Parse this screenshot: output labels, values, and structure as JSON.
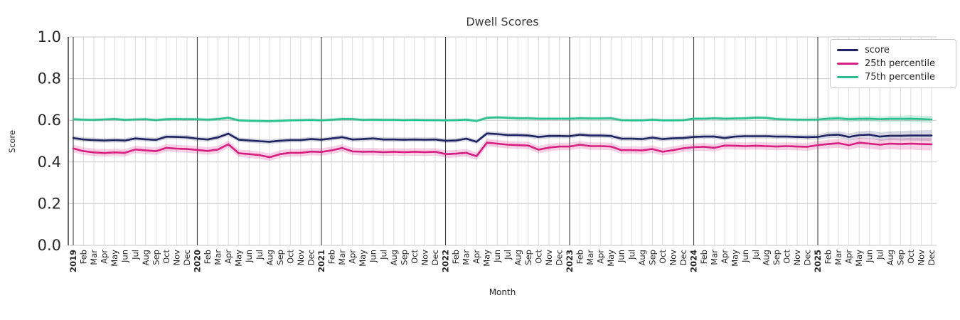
{
  "chart_data": {
    "type": "line",
    "title": "Dwell Scores",
    "xlabel": "Month",
    "ylabel": "Score",
    "ylim": [
      0.0,
      1.0
    ],
    "ytick_values": [
      0.0,
      0.2,
      0.4,
      0.6,
      0.8,
      1.0
    ],
    "ytick_labels": [
      "0.0",
      "0.2",
      "0.4",
      "0.6",
      "0.8",
      "1.0"
    ],
    "grid": true,
    "legend_position": "upper right",
    "x_tick_labels": [
      "2019",
      "Feb",
      "Mar",
      "Apr",
      "May",
      "Jun",
      "Jul",
      "Aug",
      "Sep",
      "Oct",
      "Nov",
      "Dec",
      "2020",
      "Feb",
      "Mar",
      "Apr",
      "May",
      "Jun",
      "Jul",
      "Aug",
      "Sep",
      "Oct",
      "Nov",
      "Dec",
      "2021",
      "Feb",
      "Mar",
      "Apr",
      "May",
      "Jun",
      "Jul",
      "Aug",
      "Sep",
      "Oct",
      "Nov",
      "Dec",
      "2022",
      "Feb",
      "Mar",
      "Apr",
      "May",
      "Jun",
      "Jul",
      "Aug",
      "Sep",
      "Oct",
      "Nov",
      "Dec",
      "2023",
      "Feb",
      "Mar",
      "Apr",
      "May",
      "Jun",
      "Jul",
      "Aug",
      "Sep",
      "Oct",
      "Nov",
      "Dec",
      "2024",
      "Feb",
      "Mar",
      "Apr",
      "May",
      "Jun",
      "Jul",
      "Aug",
      "Sep",
      "Oct",
      "Nov",
      "Dec",
      "2025",
      "Feb",
      "Mar",
      "Apr",
      "May",
      "Jun",
      "Jul",
      "Aug",
      "Sep",
      "Oct",
      "Nov",
      "Dec"
    ],
    "series": [
      {
        "name": "score",
        "color": "#1e2460",
        "band_color": "rgba(30,36,96,0.18)",
        "band_base": 0.011,
        "band_end": 0.026,
        "band_fan_from": 70,
        "values": [
          0.515,
          0.508,
          0.505,
          0.503,
          0.505,
          0.503,
          0.513,
          0.509,
          0.506,
          0.521,
          0.52,
          0.518,
          0.512,
          0.508,
          0.518,
          0.536,
          0.507,
          0.503,
          0.5,
          0.497,
          0.502,
          0.505,
          0.505,
          0.51,
          0.507,
          0.513,
          0.519,
          0.508,
          0.51,
          0.513,
          0.508,
          0.508,
          0.507,
          0.508,
          0.507,
          0.508,
          0.502,
          0.503,
          0.512,
          0.497,
          0.537,
          0.534,
          0.529,
          0.529,
          0.527,
          0.52,
          0.525,
          0.525,
          0.524,
          0.531,
          0.527,
          0.527,
          0.525,
          0.512,
          0.512,
          0.51,
          0.517,
          0.51,
          0.514,
          0.515,
          0.52,
          0.522,
          0.522,
          0.515,
          0.522,
          0.524,
          0.524,
          0.524,
          0.522,
          0.522,
          0.52,
          0.519,
          0.52,
          0.529,
          0.531,
          0.52,
          0.529,
          0.531,
          0.522,
          0.526,
          0.526,
          0.527,
          0.527,
          0.527
        ]
      },
      {
        "name": "25th percentile",
        "color": "#d81f81",
        "band_color": "rgba(216,31,129,0.20)",
        "band_base": 0.018,
        "band_end": 0.03,
        "band_fan_from": 70,
        "values": [
          0.465,
          0.452,
          0.446,
          0.443,
          0.446,
          0.444,
          0.46,
          0.456,
          0.452,
          0.468,
          0.464,
          0.462,
          0.458,
          0.453,
          0.46,
          0.485,
          0.442,
          0.438,
          0.433,
          0.423,
          0.438,
          0.444,
          0.444,
          0.45,
          0.448,
          0.456,
          0.467,
          0.451,
          0.449,
          0.45,
          0.447,
          0.449,
          0.447,
          0.449,
          0.447,
          0.449,
          0.438,
          0.44,
          0.444,
          0.428,
          0.493,
          0.488,
          0.483,
          0.481,
          0.479,
          0.459,
          0.469,
          0.474,
          0.474,
          0.483,
          0.476,
          0.476,
          0.474,
          0.457,
          0.457,
          0.456,
          0.462,
          0.449,
          0.457,
          0.466,
          0.471,
          0.473,
          0.468,
          0.479,
          0.478,
          0.476,
          0.478,
          0.476,
          0.474,
          0.476,
          0.474,
          0.473,
          0.481,
          0.486,
          0.49,
          0.481,
          0.493,
          0.488,
          0.483,
          0.488,
          0.486,
          0.488,
          0.486,
          0.485
        ]
      },
      {
        "name": "75th percentile",
        "color": "#2fbe8f",
        "band_color": "rgba(47,190,143,0.25)",
        "band_base": 0.008,
        "band_end": 0.017,
        "band_fan_from": 70,
        "values": [
          0.605,
          0.603,
          0.602,
          0.604,
          0.606,
          0.602,
          0.604,
          0.605,
          0.601,
          0.605,
          0.606,
          0.605,
          0.605,
          0.603,
          0.606,
          0.612,
          0.6,
          0.598,
          0.597,
          0.596,
          0.598,
          0.6,
          0.601,
          0.602,
          0.6,
          0.603,
          0.606,
          0.606,
          0.602,
          0.603,
          0.602,
          0.602,
          0.601,
          0.602,
          0.601,
          0.601,
          0.6,
          0.601,
          0.603,
          0.597,
          0.612,
          0.614,
          0.612,
          0.61,
          0.61,
          0.608,
          0.608,
          0.608,
          0.608,
          0.61,
          0.609,
          0.609,
          0.61,
          0.601,
          0.6,
          0.6,
          0.603,
          0.6,
          0.6,
          0.601,
          0.608,
          0.608,
          0.61,
          0.608,
          0.609,
          0.61,
          0.613,
          0.612,
          0.606,
          0.604,
          0.603,
          0.603,
          0.604,
          0.608,
          0.61,
          0.605,
          0.607,
          0.608,
          0.605,
          0.607,
          0.607,
          0.608,
          0.606,
          0.604
        ]
      }
    ],
    "colors": {
      "axis_text": "#262626",
      "title_text": "#3a3a3a",
      "grid_light": "#d8d8d8",
      "grid_horizontal": "#c9c9c9",
      "year_line": "#3f3f3f",
      "spine": "#2b2b2b"
    }
  }
}
